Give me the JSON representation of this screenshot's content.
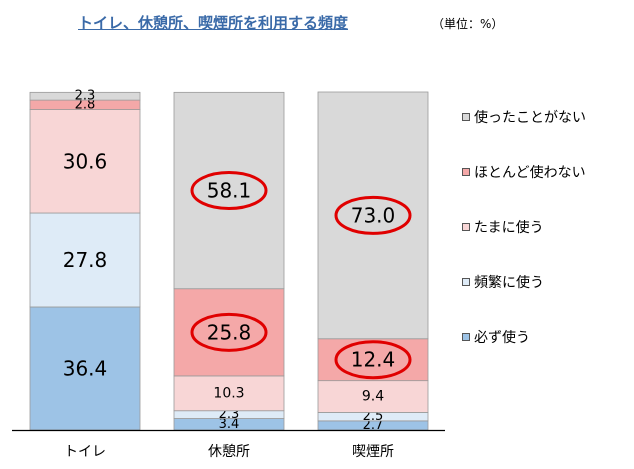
{
  "chart_data": {
    "type": "bar",
    "stacked": true,
    "title": "トイレ、休憩所、喫煙所を利用する頻度",
    "unit_label": "（単位：%）",
    "categories": [
      "トイレ",
      "休憩所",
      "喫煙所"
    ],
    "series": [
      {
        "name": "必ず使う",
        "color": "#9dc3e6",
        "values": [
          36.4,
          3.4,
          2.7
        ]
      },
      {
        "name": "頻繁に使う",
        "color": "#deebf7",
        "values": [
          27.8,
          2.3,
          2.5
        ]
      },
      {
        "name": "たまに使う",
        "color": "#f8d6d6",
        "values": [
          30.6,
          10.3,
          9.4
        ]
      },
      {
        "name": "ほとんど使わない",
        "color": "#f4a8a8",
        "values": [
          2.8,
          25.8,
          12.4
        ]
      },
      {
        "name": "使ったことがない",
        "color": "#d9d9d9",
        "values": [
          2.3,
          58.1,
          73.0
        ]
      }
    ],
    "label_text": [
      [
        "36.4",
        "3.4",
        "2.7"
      ],
      [
        "27.8",
        "2.3",
        "2.5"
      ],
      [
        "30.6",
        "10.3",
        "9.4"
      ],
      [
        "2.8",
        "25.8",
        "12.4"
      ],
      [
        "2.3",
        "58.1",
        "73.0"
      ]
    ],
    "highlighted": [
      [
        3,
        1
      ],
      [
        4,
        1
      ],
      [
        3,
        2
      ],
      [
        4,
        2
      ]
    ],
    "highlight_color": "#e00000",
    "legend_order": [
      4,
      3,
      2,
      1,
      0
    ],
    "legend_position": "right",
    "ylim": [
      0,
      100
    ],
    "grid": false
  }
}
